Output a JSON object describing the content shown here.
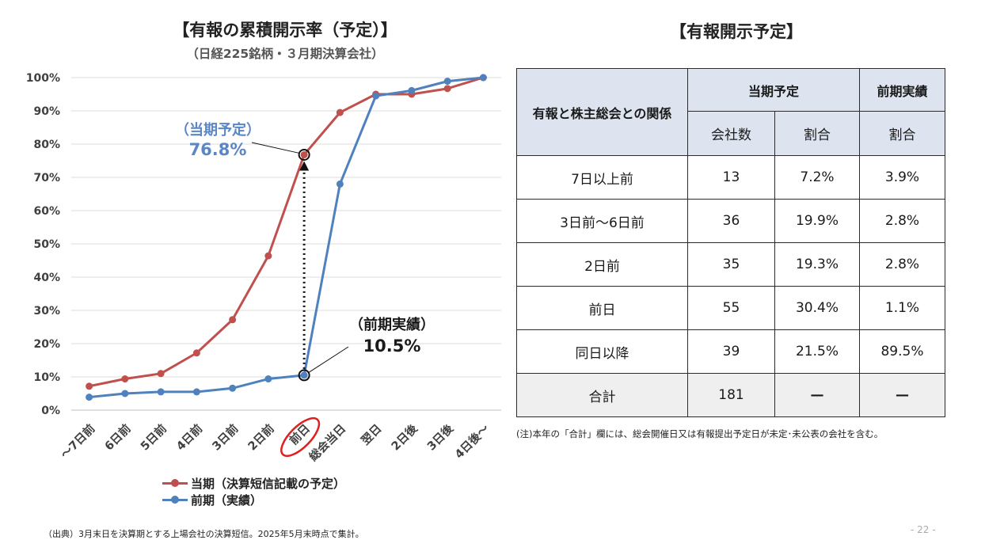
{
  "chart_data": {
    "type": "line",
    "title": "【有報の累積開示率（予定）】",
    "subtitle": "（日経225銘柄・３月期決算会社）",
    "categories": [
      "～7日前",
      "6日前",
      "5日前",
      "4日前",
      "3日前",
      "2日前",
      "前日",
      "総会当日",
      "翌日",
      "2日後",
      "3日後",
      "4日後～"
    ],
    "y_ticks": [
      "0%",
      "10%",
      "20%",
      "30%",
      "40%",
      "50%",
      "60%",
      "70%",
      "80%",
      "90%",
      "100%"
    ],
    "ylim": [
      0,
      100
    ],
    "grid": "horizontal",
    "legend_position": "bottom",
    "series": [
      {
        "name": "当期（決算短信記載の予定）",
        "color": "#c0504d",
        "values": [
          7.2,
          9.4,
          11.0,
          17.2,
          27.2,
          46.4,
          76.8,
          89.5,
          95.0,
          95.0,
          96.7,
          100
        ]
      },
      {
        "name": "前期（実績）",
        "color": "#4f81bd",
        "values": [
          3.9,
          5.0,
          5.5,
          5.5,
          6.6,
          9.4,
          10.5,
          68.0,
          94.5,
          96.1,
          98.9,
          100
        ]
      }
    ],
    "annotations": {
      "current_label": "（当期予定）",
      "current_value": "76.8%",
      "previous_label": "（前期実績）",
      "previous_value": "10.5%"
    },
    "highlighted_category": "前日"
  },
  "table": {
    "title": "【有報開示予定】",
    "relation_header": "有報と株主総会との関係",
    "current_header": "当期予定",
    "previous_header": "前期実績",
    "sub_headers": [
      "会社数",
      "割合",
      "割合"
    ],
    "rows": [
      {
        "label": "7日以上前",
        "count": "13",
        "ratio": "7.2%",
        "prev": "3.9%"
      },
      {
        "label": "3日前～6日前",
        "count": "36",
        "ratio": "19.9%",
        "prev": "2.8%"
      },
      {
        "label": "2日前",
        "count": "35",
        "ratio": "19.3%",
        "prev": "2.8%"
      },
      {
        "label": "前日",
        "count": "55",
        "ratio": "30.4%",
        "prev": "1.1%"
      },
      {
        "label": "同日以降",
        "count": "39",
        "ratio": "21.5%",
        "prev": "89.5%"
      }
    ],
    "total": {
      "label": "合計",
      "count": "181",
      "ratio": "—",
      "prev": "—"
    },
    "note": "(注)本年の「合計」欄には、総会開催日又は有報提出予定日が未定･未公表の会社を含む。"
  },
  "source_note": "（出典）3月末日を決算期とする上場会社の決算短信。2025年5月末時点で集計。",
  "page_number": "- 22 -"
}
